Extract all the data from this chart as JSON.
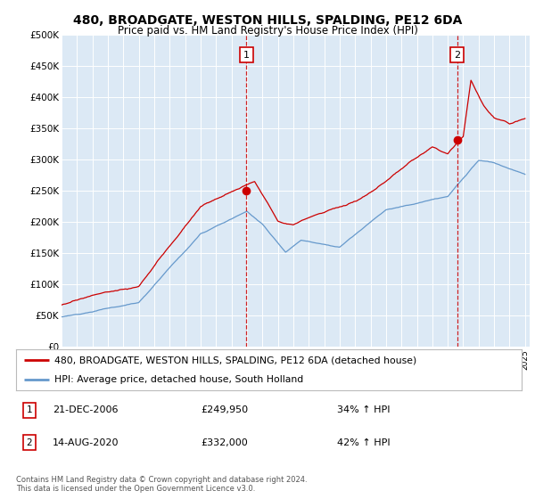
{
  "title": "480, BROADGATE, WESTON HILLS, SPALDING, PE12 6DA",
  "subtitle": "Price paid vs. HM Land Registry's House Price Index (HPI)",
  "background_color": "#ffffff",
  "plot_bg_color": "#dce9f5",
  "red_color": "#cc0000",
  "blue_color": "#6699cc",
  "ylim": [
    0,
    500000
  ],
  "yticks": [
    0,
    50000,
    100000,
    150000,
    200000,
    250000,
    300000,
    350000,
    400000,
    450000,
    500000
  ],
  "ytick_labels": [
    "£0",
    "£50K",
    "£100K",
    "£150K",
    "£200K",
    "£250K",
    "£300K",
    "£350K",
    "£400K",
    "£450K",
    "£500K"
  ],
  "transaction1_date": "21-DEC-2006",
  "transaction1_price": 249950,
  "transaction1_hpi": "34% ↑ HPI",
  "transaction1_x": 2006.97,
  "transaction2_date": "14-AUG-2020",
  "transaction2_price": 332000,
  "transaction2_hpi": "42% ↑ HPI",
  "transaction2_x": 2020.62,
  "legend_line1": "480, BROADGATE, WESTON HILLS, SPALDING, PE12 6DA (detached house)",
  "legend_line2": "HPI: Average price, detached house, South Holland",
  "footer": "Contains HM Land Registry data © Crown copyright and database right 2024.\nThis data is licensed under the Open Government Licence v3.0.",
  "xlim_start": 1995,
  "xlim_end": 2025.3
}
